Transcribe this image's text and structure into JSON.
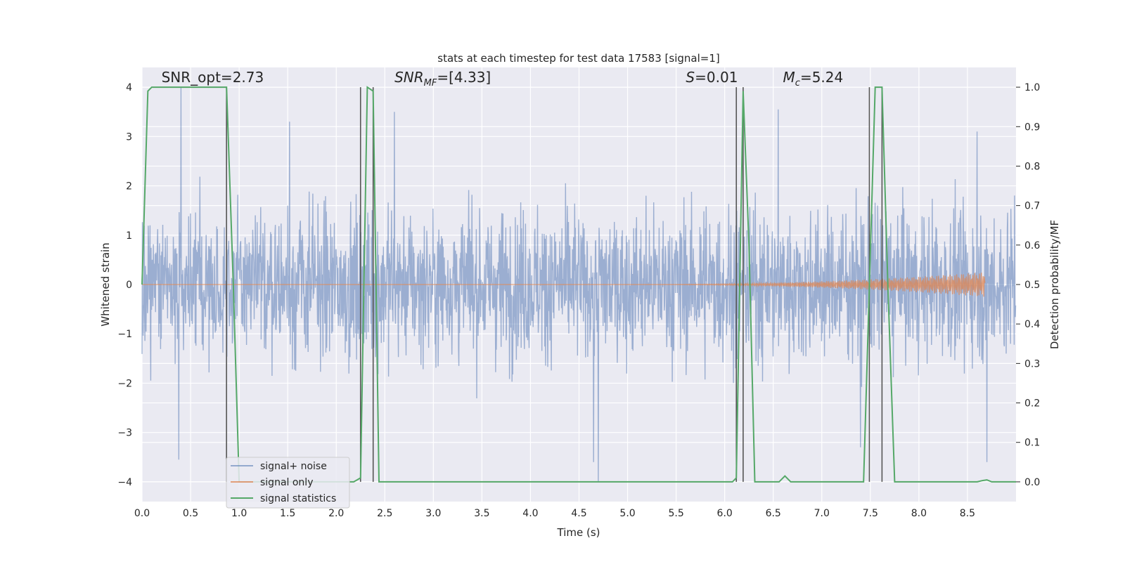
{
  "chart_data": {
    "type": "line",
    "title": "stats at each timestep for test data 17583 [signal=1]",
    "xlabel": "Time (s)",
    "ylabel": "Whitened strain",
    "y2label": "Detection probability/MF",
    "xlim": [
      0.0,
      9.0
    ],
    "ylim": [
      -4.4,
      4.4
    ],
    "y2lim": [
      -0.05,
      1.05
    ],
    "xticks": [
      0.0,
      0.5,
      1.0,
      1.5,
      2.0,
      2.5,
      3.0,
      3.5,
      4.0,
      4.5,
      5.0,
      5.5,
      6.0,
      6.5,
      7.0,
      7.5,
      8.0,
      8.5
    ],
    "xtick_labels": [
      "0.0",
      "0.5",
      "1.0",
      "1.5",
      "2.0",
      "2.5",
      "3.0",
      "3.5",
      "4.0",
      "4.5",
      "5.0",
      "5.5",
      "6.0",
      "6.5",
      "7.0",
      "7.5",
      "8.0",
      "8.5"
    ],
    "yticks": [
      -4,
      -3,
      -2,
      -1,
      0,
      1,
      2,
      3,
      4
    ],
    "ytick_labels": [
      "−4",
      "−3",
      "−2",
      "−1",
      "0",
      "1",
      "2",
      "3",
      "4"
    ],
    "y2ticks": [
      0.0,
      0.1,
      0.2,
      0.3,
      0.4,
      0.5,
      0.6,
      0.7,
      0.8,
      0.9,
      1.0
    ],
    "y2tick_labels": [
      "0.0",
      "0.1",
      "0.2",
      "0.3",
      "0.4",
      "0.5",
      "0.6",
      "0.7",
      "0.8",
      "0.9",
      "1.0"
    ],
    "grid": true,
    "legend_position": "lower-left",
    "annotations": [
      {
        "label": "SNR_opt=2.73",
        "x": 0.2,
        "y": 4.1
      },
      {
        "label": "SNR_MF=[4.33]",
        "x": 2.6,
        "y": 4.1
      },
      {
        "label": "S=0.01",
        "x": 5.6,
        "y": 4.1
      },
      {
        "label": "M_c=5.24",
        "x": 6.6,
        "y": 4.1
      }
    ],
    "vlines": [
      0.87,
      2.25,
      2.38,
      6.12,
      6.19,
      7.49,
      7.62
    ],
    "series": [
      {
        "name": "signal+ noise",
        "color": "#4c72b0",
        "kind": "noise",
        "envelope_min": -2.5,
        "envelope_max": 2.5,
        "peaks": [
          [
            0.4,
            4.0
          ],
          [
            0.38,
            -3.55
          ],
          [
            1.52,
            3.3
          ],
          [
            2.6,
            3.5
          ],
          [
            4.7,
            -4.0
          ],
          [
            4.65,
            -3.6
          ],
          [
            6.55,
            3.55
          ],
          [
            8.7,
            -3.6
          ],
          [
            7.4,
            -3.3
          ],
          [
            8.6,
            3.1
          ]
        ]
      },
      {
        "name": "signal only",
        "color": "#dd8452",
        "kind": "chirp",
        "end_time": 8.68,
        "peak_amplitude": 0.25
      },
      {
        "name": "signal statistics",
        "color": "#55a868",
        "kind": "prob",
        "x": [
          0.0,
          0.06,
          0.1,
          0.2,
          0.3,
          0.4,
          0.5,
          0.6,
          0.7,
          0.8,
          0.87,
          0.94,
          1.0,
          1.05,
          1.5,
          2.0,
          2.18,
          2.25,
          2.32,
          2.38,
          2.44,
          2.5,
          3.0,
          4.0,
          5.0,
          5.5,
          6.0,
          6.08,
          6.12,
          6.19,
          6.25,
          6.31,
          6.37,
          6.5,
          6.56,
          6.62,
          6.68,
          6.75,
          7.0,
          7.2,
          7.43,
          7.49,
          7.55,
          7.62,
          7.68,
          7.75,
          8.0,
          8.5,
          8.6,
          8.65,
          8.7,
          8.75,
          9.0
        ],
        "y": [
          0.5,
          0.99,
          1.0,
          1.0,
          1.0,
          1.0,
          1.0,
          1.0,
          1.0,
          1.0,
          1.0,
          0.5,
          0.0,
          0.0,
          0.0,
          0.0,
          0.0,
          0.01,
          1.0,
          0.99,
          0.0,
          0.0,
          0.0,
          0.0,
          0.0,
          0.0,
          0.0,
          0.0,
          0.01,
          0.99,
          0.6,
          0.0,
          0.0,
          0.0,
          0.0,
          0.015,
          0.0,
          0.0,
          0.0,
          0.0,
          0.0,
          0.5,
          1.0,
          1.0,
          0.5,
          0.0,
          0.0,
          0.0,
          0.0,
          0.003,
          0.005,
          0.0,
          0.0
        ]
      }
    ]
  }
}
